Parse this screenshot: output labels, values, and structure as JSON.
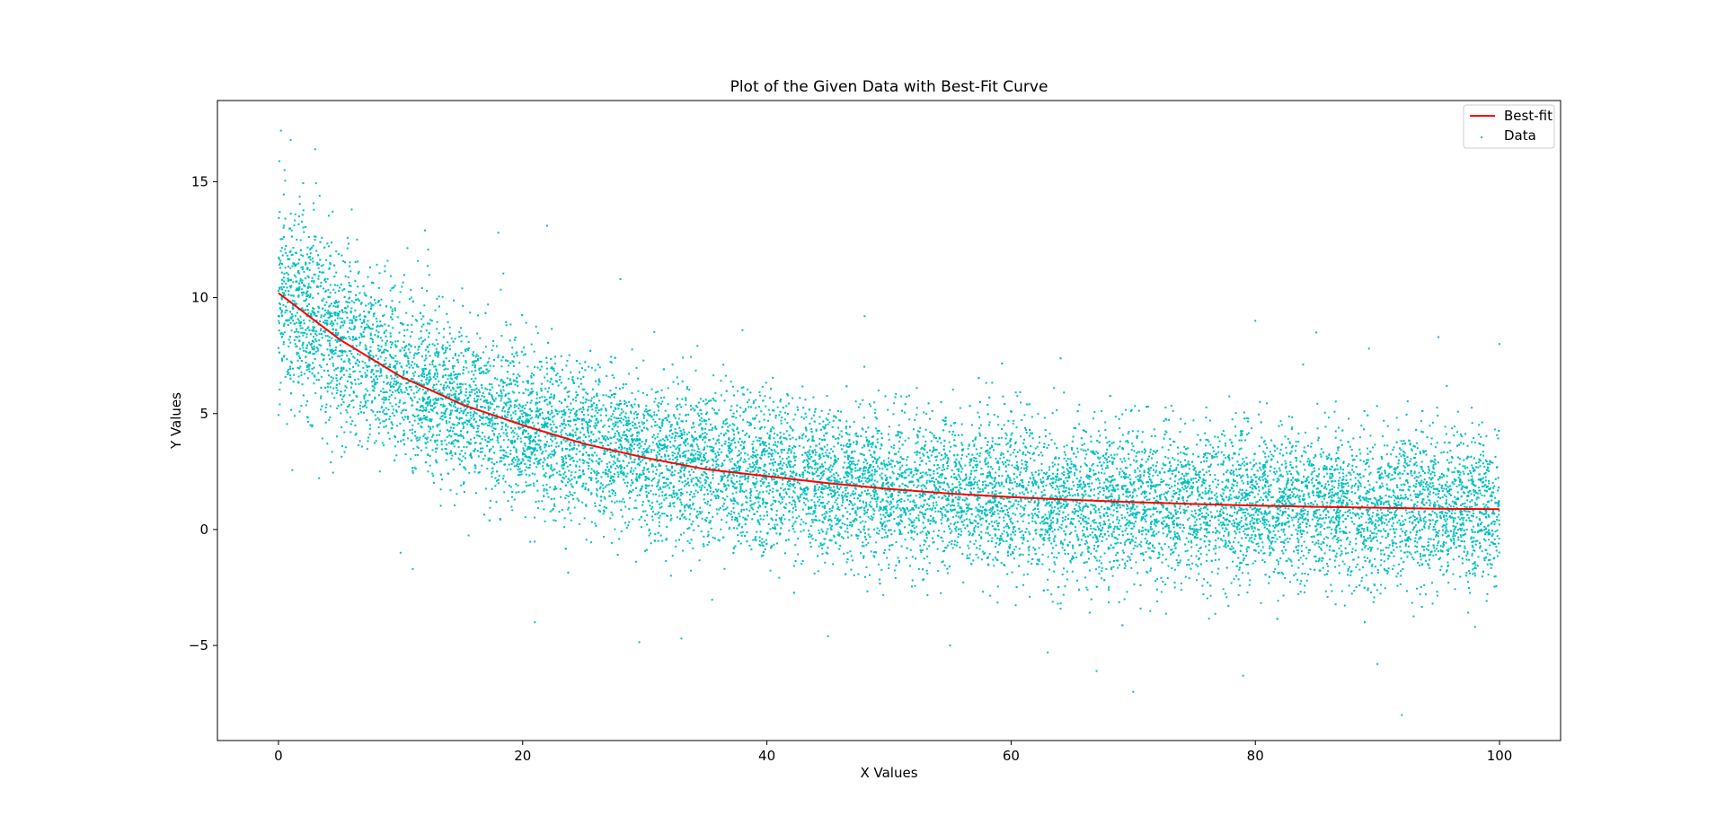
{
  "chart_data": {
    "type": "scatter",
    "title": "Plot of the Given Data with Best-Fit Curve",
    "xlabel": "X Values",
    "ylabel": "Y Values",
    "xlim": [
      -5,
      105
    ],
    "ylim": [
      -9.1,
      18.5
    ],
    "x_ticks": [
      0,
      20,
      40,
      60,
      80,
      100
    ],
    "x_tick_labels": [
      "0",
      "20",
      "40",
      "60",
      "80",
      "100"
    ],
    "y_ticks": [
      -5,
      0,
      5,
      10,
      15
    ],
    "y_tick_labels": [
      "−5",
      "0",
      "5",
      "10",
      "15"
    ],
    "grid": false,
    "legend_position": "top-right",
    "series": [
      {
        "name": "Best-fit",
        "kind": "line",
        "color": "#ff0000",
        "x": [
          0,
          5,
          10,
          15,
          20,
          25,
          30,
          35,
          40,
          45,
          50,
          55,
          60,
          65,
          70,
          75,
          80,
          85,
          90,
          95,
          100
        ],
        "y": [
          10.2,
          8.2,
          6.6,
          5.4,
          4.5,
          3.7,
          3.1,
          2.6,
          2.3,
          2.0,
          1.75,
          1.55,
          1.4,
          1.28,
          1.18,
          1.1,
          1.03,
          0.98,
          0.94,
          0.9,
          0.88
        ]
      },
      {
        "name": "Data",
        "kind": "scatter",
        "color": "#00bfbf",
        "model": "band around best-fit, spread ±~3.5 (sd ~1.7)",
        "x": [
          0.2,
          0.5,
          1.0,
          1.5,
          2.0,
          3.0,
          4.0,
          6.0,
          8.0,
          10.0,
          11.0,
          12.0,
          15.0,
          18.0,
          20.0,
          21.0,
          22.0,
          25.0,
          28.0,
          30.0,
          33.0,
          35.0,
          38.0,
          40.0,
          45.0,
          48.0,
          50.0,
          55.0,
          60.0,
          63.0,
          67.0,
          70.0,
          75.0,
          79.0,
          80.0,
          85.0,
          88.0,
          90.0,
          92.0,
          95.0,
          98.0,
          100.0
        ],
        "y": [
          17.2,
          15.5,
          16.8,
          12.5,
          8.0,
          16.4,
          3.7,
          13.8,
          7.5,
          -1.0,
          -1.7,
          12.9,
          4.8,
          12.8,
          4.6,
          -4.0,
          13.1,
          3.5,
          10.8,
          3.1,
          -4.7,
          2.6,
          8.6,
          2.3,
          -4.6,
          9.2,
          1.8,
          -5.0,
          1.4,
          -5.3,
          -6.1,
          -7.0,
          1.1,
          -6.3,
          9.0,
          8.5,
          0.9,
          -5.8,
          -8.0,
          8.3,
          -4.2,
          8.0
        ]
      }
    ]
  }
}
